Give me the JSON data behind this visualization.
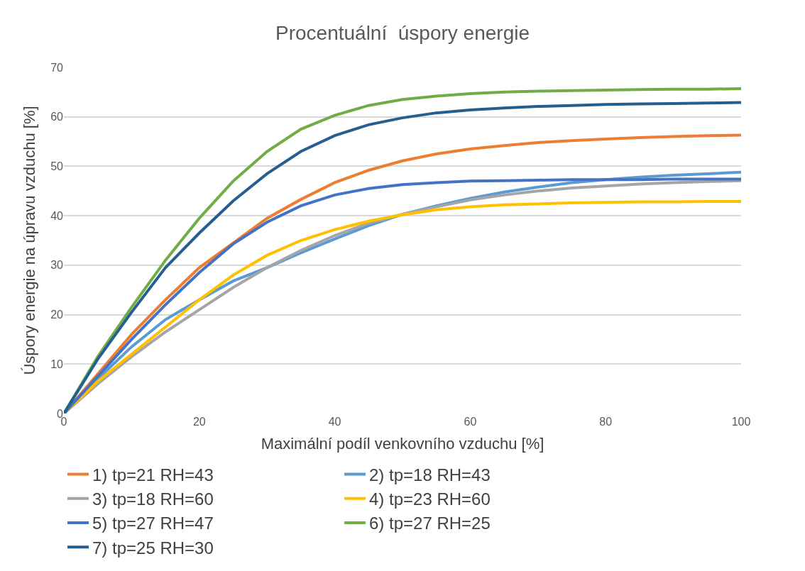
{
  "chart_data": {
    "type": "line",
    "title": "Procentuální  úspory energie",
    "xlabel": "Maximální podíl venkovního vzduchu [%]",
    "ylabel": "Úspory energie na úpravu vzduchu [%]",
    "x": [
      0,
      5,
      10,
      15,
      20,
      25,
      30,
      35,
      40,
      45,
      50,
      55,
      60,
      65,
      70,
      75,
      80,
      85,
      90,
      95,
      100
    ],
    "xlim": [
      0,
      100
    ],
    "xticks": [
      0,
      20,
      40,
      60,
      80,
      100
    ],
    "ylim": [
      0,
      70
    ],
    "yticks": [
      0,
      10,
      20,
      30,
      40,
      50,
      60,
      70
    ],
    "grid": "y",
    "legend": "bottom",
    "marker": "none",
    "line_style": "solid",
    "series": [
      {
        "name": "1) tp=21 RH=43",
        "color": "#ed7d31",
        "values": [
          0,
          8,
          16,
          23,
          29.5,
          34.5,
          39.5,
          43.3,
          46.7,
          49.2,
          51.1,
          52.5,
          53.5,
          54.2,
          54.8,
          55.2,
          55.5,
          55.8,
          56,
          56.2,
          56.3
        ]
      },
      {
        "name": "2) tp=18 RH=43",
        "color": "#5b9bd5",
        "values": [
          0,
          7,
          13.5,
          19,
          23,
          26.8,
          29.5,
          32.5,
          35.3,
          38,
          40.3,
          42,
          43.5,
          44.8,
          45.8,
          46.7,
          47.3,
          47.8,
          48.2,
          48.5,
          48.8
        ]
      },
      {
        "name": "3) tp=18 RH=60",
        "color": "#a5a5a5",
        "values": [
          0,
          6,
          11.5,
          16.5,
          21,
          25.5,
          29.5,
          33,
          36,
          38.5,
          40.3,
          41.8,
          43.2,
          44.2,
          45,
          45.6,
          46,
          46.4,
          46.7,
          46.9,
          47.1
        ]
      },
      {
        "name": "4) tp=23 RH=60",
        "color": "#ffc000",
        "values": [
          0,
          6.5,
          12,
          17.5,
          23,
          28,
          32,
          35,
          37.2,
          38.9,
          40.2,
          41.2,
          41.8,
          42.2,
          42.4,
          42.6,
          42.7,
          42.8,
          42.8,
          42.9,
          42.9
        ]
      },
      {
        "name": "5) tp=27 RH=47",
        "color": "#4472c4",
        "values": [
          0,
          7.5,
          15,
          22,
          28.5,
          34.3,
          38.7,
          42,
          44.2,
          45.5,
          46.3,
          46.7,
          47,
          47.1,
          47.2,
          47.3,
          47.3,
          47.3,
          47.4,
          47.4,
          47.4
        ]
      },
      {
        "name": "6) tp=27 RH=25",
        "color": "#70ad47",
        "values": [
          0,
          11.5,
          21.5,
          31,
          39.5,
          47,
          53,
          57.5,
          60.3,
          62.3,
          63.5,
          64.2,
          64.7,
          65,
          65.2,
          65.3,
          65.4,
          65.5,
          65.6,
          65.6,
          65.7
        ]
      },
      {
        "name": "7) tp=25 RH=30",
        "color": "#255e91",
        "values": [
          0,
          11,
          20.5,
          29.5,
          36.5,
          43,
          48.5,
          53,
          56.2,
          58.4,
          59.8,
          60.8,
          61.4,
          61.8,
          62.1,
          62.3,
          62.5,
          62.6,
          62.7,
          62.8,
          62.9
        ]
      }
    ]
  }
}
